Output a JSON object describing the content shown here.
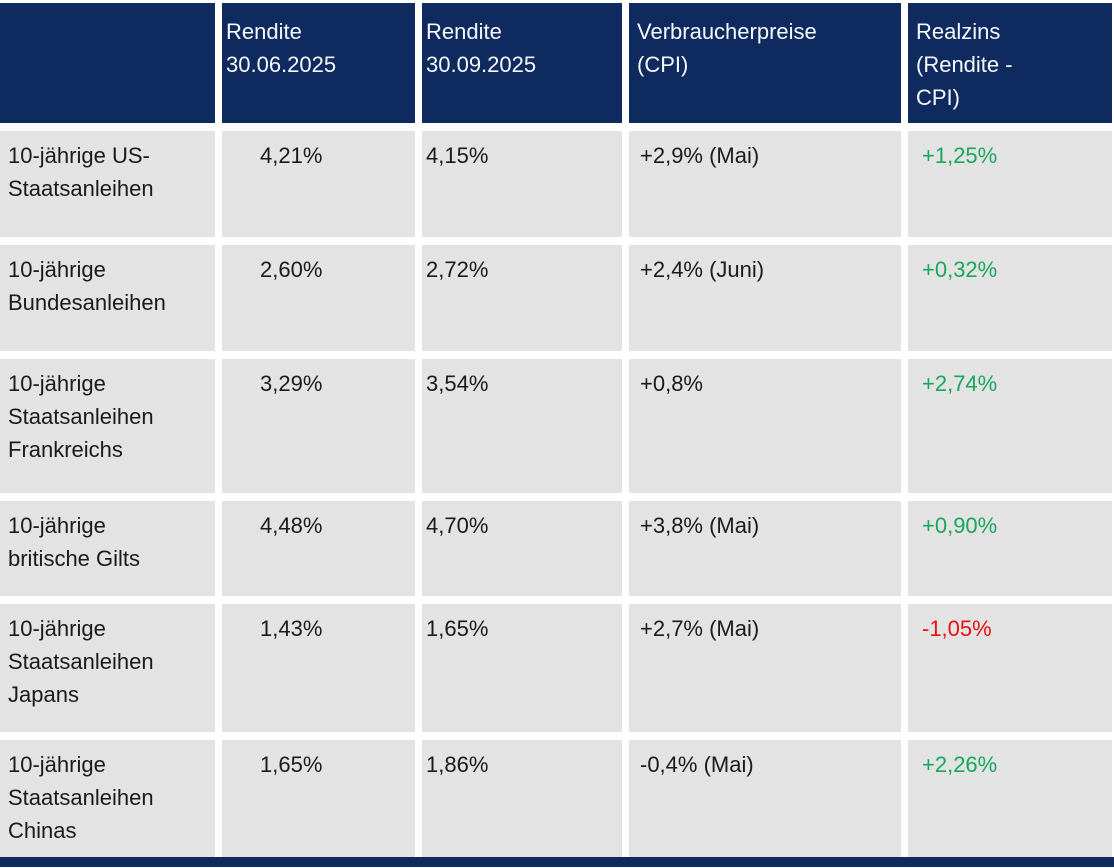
{
  "colors": {
    "header_bg": "#0e2a5e",
    "row_bg": "#e3e3e3",
    "positive": "#16a75a",
    "negative": "#e81212",
    "header_text": "#f7f9fc",
    "body_text": "#1a1a1a"
  },
  "chart_data": {
    "type": "table",
    "columns": [
      "",
      "Rendite 30.06.2025",
      "Rendite 30.09.2025",
      "Verbraucherpreise (CPI)",
      "Realzins (Rendite - CPI)"
    ],
    "rows": [
      [
        "10-jährige US-Staatsanleihen",
        "4,21%",
        "4,15%",
        "+2,9% (Mai)",
        "+1,25%"
      ],
      [
        "10-jährige Bundesanleihen",
        "2,60%",
        "2,72%",
        "+2,4% (Juni)",
        "+0,32%"
      ],
      [
        "10-jährige Staatsanleihen Frankreichs",
        "3,29%",
        "3,54%",
        "+0,8%",
        "+2,74%"
      ],
      [
        "10-jährige britische Gilts",
        "4,48%",
        "4,70%",
        "+3,8% (Mai)",
        "+0,90%"
      ],
      [
        "10-jährige Staatsanleihen Japans",
        "1,43%",
        "1,65%",
        "+2,7% (Mai)",
        "-1,05%"
      ],
      [
        "10-jährige Staatsanleihen Chinas",
        "1,65%",
        "1,86%",
        "-0,4% (Mai)",
        "+2,26%"
      ]
    ],
    "realzins_status": [
      "positive",
      "positive",
      "positive",
      "positive",
      "negative",
      "positive"
    ],
    "legend_position": "none",
    "grid": "white gaps between gray cells"
  },
  "display": {
    "headers": [
      "Rendite\n30.06.2025",
      "Rendite\n30.09.2025",
      "Verbraucherpreise\n(CPI)",
      "Realzins\n(Rendite -\nCPI)"
    ],
    "row_names": [
      "10-jährige US-\nStaatsanleihen",
      "10-jährige\nBundesanleihen",
      "10-jährige\nStaatsanleihen\nFrankreichs",
      "10-jährige\nbritische Gilts",
      "10-jährige\nStaatsanleihen\nJapans",
      "10-jährige\nStaatsanleihen\nChinas"
    ]
  }
}
